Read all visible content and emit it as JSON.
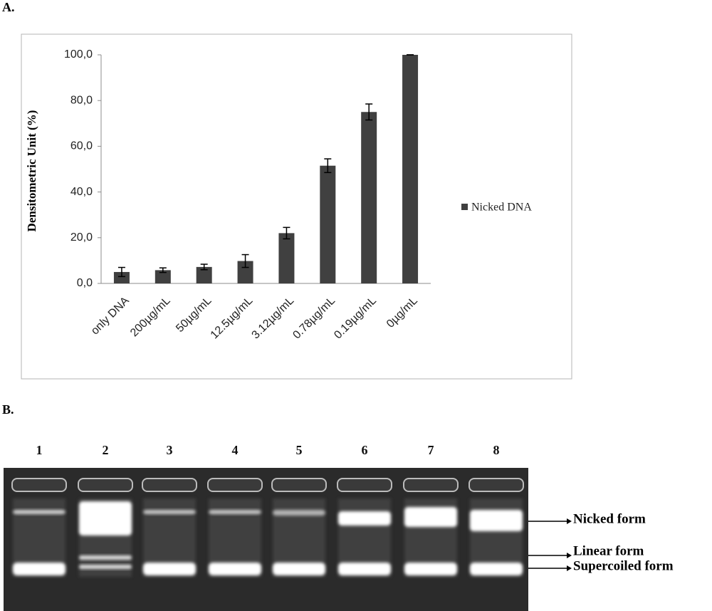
{
  "panel_labels": [
    "A.",
    "B."
  ],
  "chart_data": {
    "type": "bar",
    "ylabel": "Densitometric Unit (%)",
    "categories": [
      "only DNA",
      "200µg/mL",
      "50µg/mL",
      "12.5µg/mL",
      "3.12µg/mL",
      "0.78µg/mL",
      "0.19µg/mL",
      "0µg/mL"
    ],
    "series": [
      {
        "name": "Nicked DNA",
        "color": "#404040",
        "values": [
          5,
          5.8,
          7.2,
          9.8,
          22,
          51.5,
          75,
          100
        ],
        "errors": [
          2,
          1,
          1.2,
          2.8,
          2.5,
          3,
          3.5,
          0
        ]
      }
    ],
    "ylim": [
      0,
      100
    ],
    "yticks": [
      {
        "value": 0,
        "label": "0,0"
      },
      {
        "value": 20,
        "label": "20,0"
      },
      {
        "value": 40,
        "label": "40,0"
      },
      {
        "value": 60,
        "label": "60,0"
      },
      {
        "value": 80,
        "label": "80,0"
      },
      {
        "value": 100,
        "label": "100,0"
      }
    ],
    "legend": "right"
  },
  "gel": {
    "lanes": [
      "1",
      "2",
      "3",
      "4",
      "5",
      "6",
      "7",
      "8"
    ],
    "bands": [
      "Nicked form",
      "Linear form",
      "Supercoiled form"
    ]
  }
}
